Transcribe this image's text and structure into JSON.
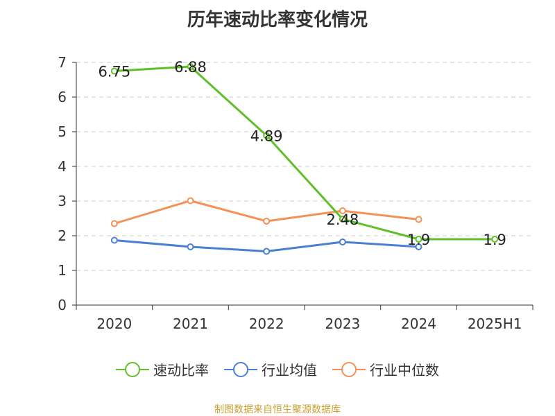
{
  "title": "历年速动比率变化情况",
  "source": "制图数据来自恒生聚源数据库",
  "chart_data": {
    "type": "line",
    "categories": [
      "2020",
      "2021",
      "2022",
      "2023",
      "2024",
      "2025H1"
    ],
    "ylim": [
      0,
      7
    ],
    "yticks": [
      0,
      1,
      2,
      3,
      4,
      5,
      6,
      7
    ],
    "grid": true,
    "legend_position": "bottom",
    "series": [
      {
        "name": "速动比率",
        "color": "#5fbf28",
        "values": [
          6.75,
          6.88,
          4.89,
          2.48,
          1.9,
          1.9
        ],
        "labels": [
          "6.75",
          "6.88",
          "4.89",
          "2.48",
          "1.9",
          "1.9"
        ]
      },
      {
        "name": "行业均值",
        "color": "#4a7fd4",
        "values": [
          1.87,
          1.68,
          1.55,
          1.82,
          1.68,
          null
        ]
      },
      {
        "name": "行业中位数",
        "color": "#f59157",
        "values": [
          2.35,
          3.01,
          2.42,
          2.72,
          2.47,
          null
        ]
      }
    ]
  }
}
